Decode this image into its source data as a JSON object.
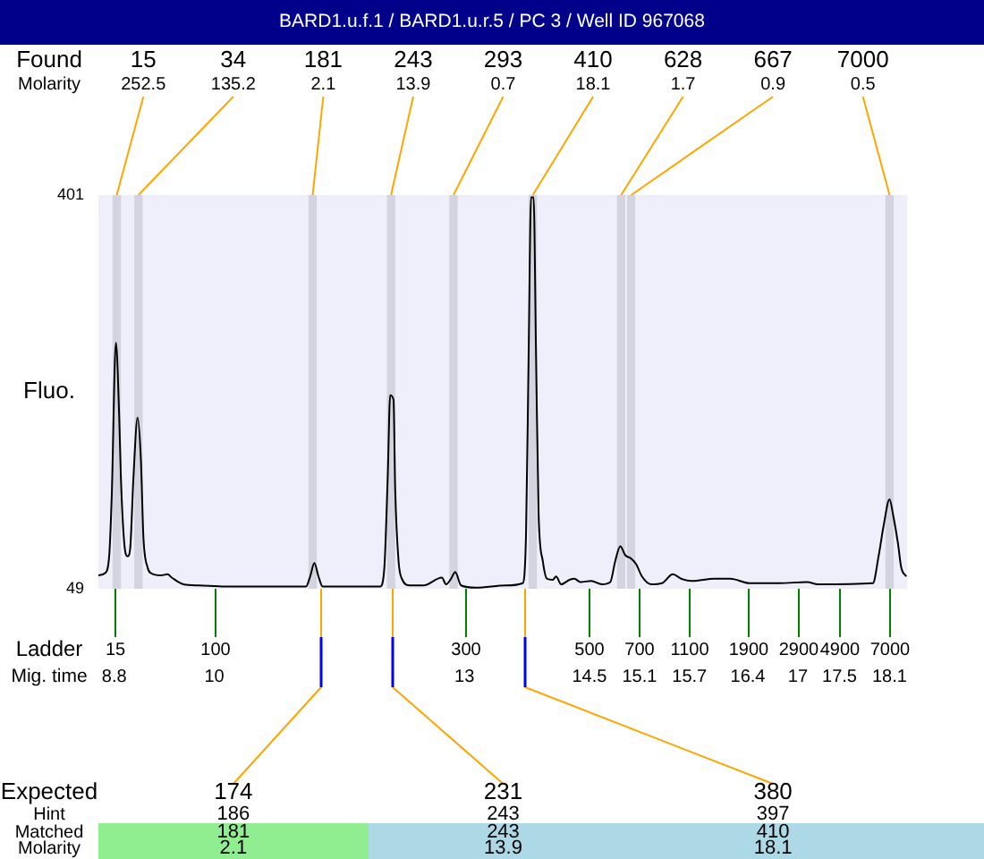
{
  "chart_data": {
    "type": "line",
    "title": "BARD1.u.f.1 / BARD1.u.r.5 / PC 3 / Well ID 967068",
    "ylabel": "Fluo.",
    "xlabel": "Mig. time",
    "x": [
      8.61,
      8.69,
      8.74,
      8.77,
      8.82,
      8.86,
      8.88,
      8.92,
      8.96,
      8.99,
      9.03,
      9.08,
      9.12,
      9.15,
      9.2,
      9.24,
      9.36,
      9.44,
      9.49,
      9.63,
      9.82,
      10.14,
      11.1,
      11.15,
      11.2,
      11.25,
      11.3,
      11.99,
      12.04,
      12.08,
      12.11,
      12.15,
      12.17,
      12.21,
      12.25,
      12.35,
      12.51,
      12.73,
      12.78,
      12.84,
      12.89,
      12.96,
      13.14,
      13.5,
      13.7,
      13.74,
      13.77,
      13.8,
      13.83,
      13.86,
      13.89,
      13.94,
      13.99,
      14.06,
      14.1,
      14.16,
      14.26,
      14.32,
      14.39,
      14.52,
      14.65,
      14.75,
      14.81,
      14.87,
      14.93,
      15.0,
      15.06,
      15.13,
      15.24,
      15.37,
      15.5,
      15.6,
      15.73,
      16.0,
      16.19,
      16.42,
      16.78,
      17.11,
      17.24,
      17.9,
      17.97,
      18.03,
      18.1,
      18.14,
      18.2,
      18.24,
      18.3
    ],
    "values": [
      61,
      63,
      79,
      132,
      269,
      202,
      148,
      90,
      78,
      84,
      148,
      202,
      164,
      95,
      68,
      63,
      61,
      62,
      59,
      53,
      52,
      51,
      51,
      60,
      72,
      60,
      51,
      51,
      68,
      148,
      222,
      218,
      138,
      74,
      58,
      52,
      52,
      59,
      53,
      58,
      64,
      52,
      50,
      52,
      54,
      100,
      255,
      399,
      399,
      255,
      116,
      74,
      58,
      57,
      60,
      53,
      57,
      58,
      55,
      56,
      53,
      55,
      74,
      87,
      79,
      76,
      71,
      60,
      53,
      54,
      62,
      58,
      56,
      58,
      58,
      54,
      54,
      55,
      53,
      54,
      79,
      106,
      129,
      116,
      90,
      68,
      60
    ],
    "color": "#000000",
    "marker": "none",
    "xlim": [
      8.61,
      18.32
    ],
    "xticks": [
      8.8,
      10,
      13,
      14.5,
      15.1,
      15.7,
      16.4,
      17,
      17.5,
      18.1
    ],
    "ylim": [
      49,
      401
    ],
    "yticks": [
      49,
      401
    ],
    "bands": [
      {
        "axis": "x",
        "from": 8.78,
        "to": 8.88,
        "color": "#d4d4e0"
      },
      {
        "axis": "x",
        "from": 9.04,
        "to": 9.14,
        "color": "#d4d4e0"
      },
      {
        "axis": "x",
        "from": 11.13,
        "to": 11.23,
        "color": "#d4d4e0"
      },
      {
        "axis": "x",
        "from": 12.07,
        "to": 12.17,
        "color": "#d4d4e0"
      },
      {
        "axis": "x",
        "from": 12.82,
        "to": 12.92,
        "color": "#d4d4e0"
      },
      {
        "axis": "x",
        "from": 13.77,
        "to": 13.87,
        "color": "#d4d4e0"
      },
      {
        "axis": "x",
        "from": 14.83,
        "to": 14.93,
        "color": "#d4d4e0"
      },
      {
        "axis": "x",
        "from": 14.95,
        "to": 15.05,
        "color": "#d4d4e0"
      },
      {
        "axis": "x",
        "from": 18.05,
        "to": 18.15,
        "color": "#d4d4e0"
      }
    ],
    "annotations": [
      "Found",
      "Molarity",
      {
        "text": "15",
        "x": 8.83,
        "y": 401
      },
      "252.5",
      {
        "text": "34",
        "x": 9.09,
        "y": 401
      },
      "135.2",
      {
        "text": "181",
        "x": 11.18,
        "y": 401
      },
      "2.1",
      {
        "text": "243",
        "x": 12.12,
        "y": 401
      },
      "13.9",
      {
        "text": "293",
        "x": 12.87,
        "y": 401
      },
      "0.7",
      {
        "text": "410",
        "x": 13.82,
        "y": 401
      },
      "18.1",
      {
        "text": "628",
        "x": 14.88,
        "y": 401
      },
      "1.7",
      {
        "text": "667",
        "x": 15.0,
        "y": 401
      },
      "0.9",
      {
        "text": "7000",
        "x": 18.1,
        "y": 401
      },
      "0.5",
      "Ladder",
      {
        "text": "15",
        "x": 8.8,
        "y": 49
      },
      {
        "text": "100",
        "x": 10,
        "y": 49
      },
      {
        "text": "300",
        "x": 13,
        "y": 49
      },
      {
        "text": "500",
        "x": 14.5,
        "y": 49
      },
      {
        "text": "700",
        "x": 15.1,
        "y": 49
      },
      {
        "text": "1100",
        "x": 15.7,
        "y": 49
      },
      {
        "text": "1900",
        "x": 16.4,
        "y": 49
      },
      {
        "text": "2900",
        "x": 17,
        "y": 49
      },
      {
        "text": "4900",
        "x": 17.5,
        "y": 49
      },
      {
        "text": "7000",
        "x": 18.1,
        "y": 49
      },
      "Expected",
      "Hint",
      "Matched",
      "Molarity",
      {
        "text": "174",
        "x": 11.27,
        "y": 49
      },
      "186",
      "181",
      "2.1",
      {
        "text": "231",
        "x": 12.12,
        "y": 49
      },
      "243",
      "243",
      "13.9",
      {
        "text": "380",
        "x": 13.72,
        "y": 49
      },
      "397",
      "410",
      "18.1"
    ]
  }
}
